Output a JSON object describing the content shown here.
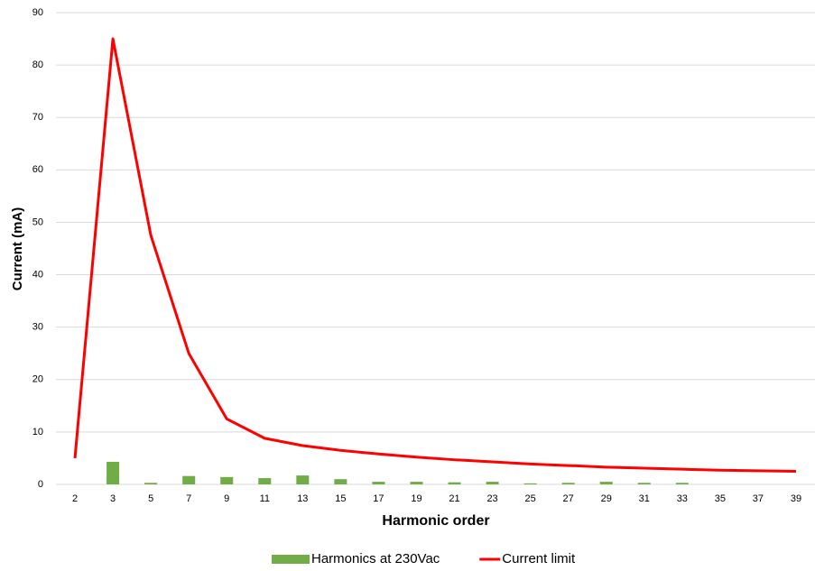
{
  "chart_data": {
    "type": "bar-line",
    "x_label": "Harmonic order",
    "y_label": "Current (mA)",
    "categories": [
      "2",
      "3",
      "5",
      "7",
      "9",
      "11",
      "13",
      "15",
      "17",
      "19",
      "21",
      "23",
      "25",
      "27",
      "29",
      "31",
      "33",
      "35",
      "37",
      "39"
    ],
    "series": [
      {
        "name": "Harmonics at 230Vac",
        "type": "bar",
        "color": "#70ad47",
        "values": [
          0,
          4.3,
          0.3,
          1.6,
          1.4,
          1.2,
          1.7,
          1.0,
          0.5,
          0.5,
          0.4,
          0.5,
          0.2,
          0.3,
          0.5,
          0.3,
          0.3,
          0,
          0,
          0
        ]
      },
      {
        "name": "Current limit",
        "type": "line",
        "color": "#ff0000",
        "values": [
          5,
          85,
          47.5,
          25,
          12.5,
          8.8,
          7.4,
          6.5,
          5.8,
          5.2,
          4.7,
          4.3,
          3.9,
          3.6,
          3.3,
          3.1,
          2.9,
          2.7,
          2.6,
          2.5
        ]
      }
    ],
    "ylim": [
      0,
      90
    ],
    "yticks": [
      0,
      10,
      20,
      30,
      40,
      50,
      60,
      70,
      80,
      90
    ],
    "grid": true,
    "legend": "bottom"
  }
}
